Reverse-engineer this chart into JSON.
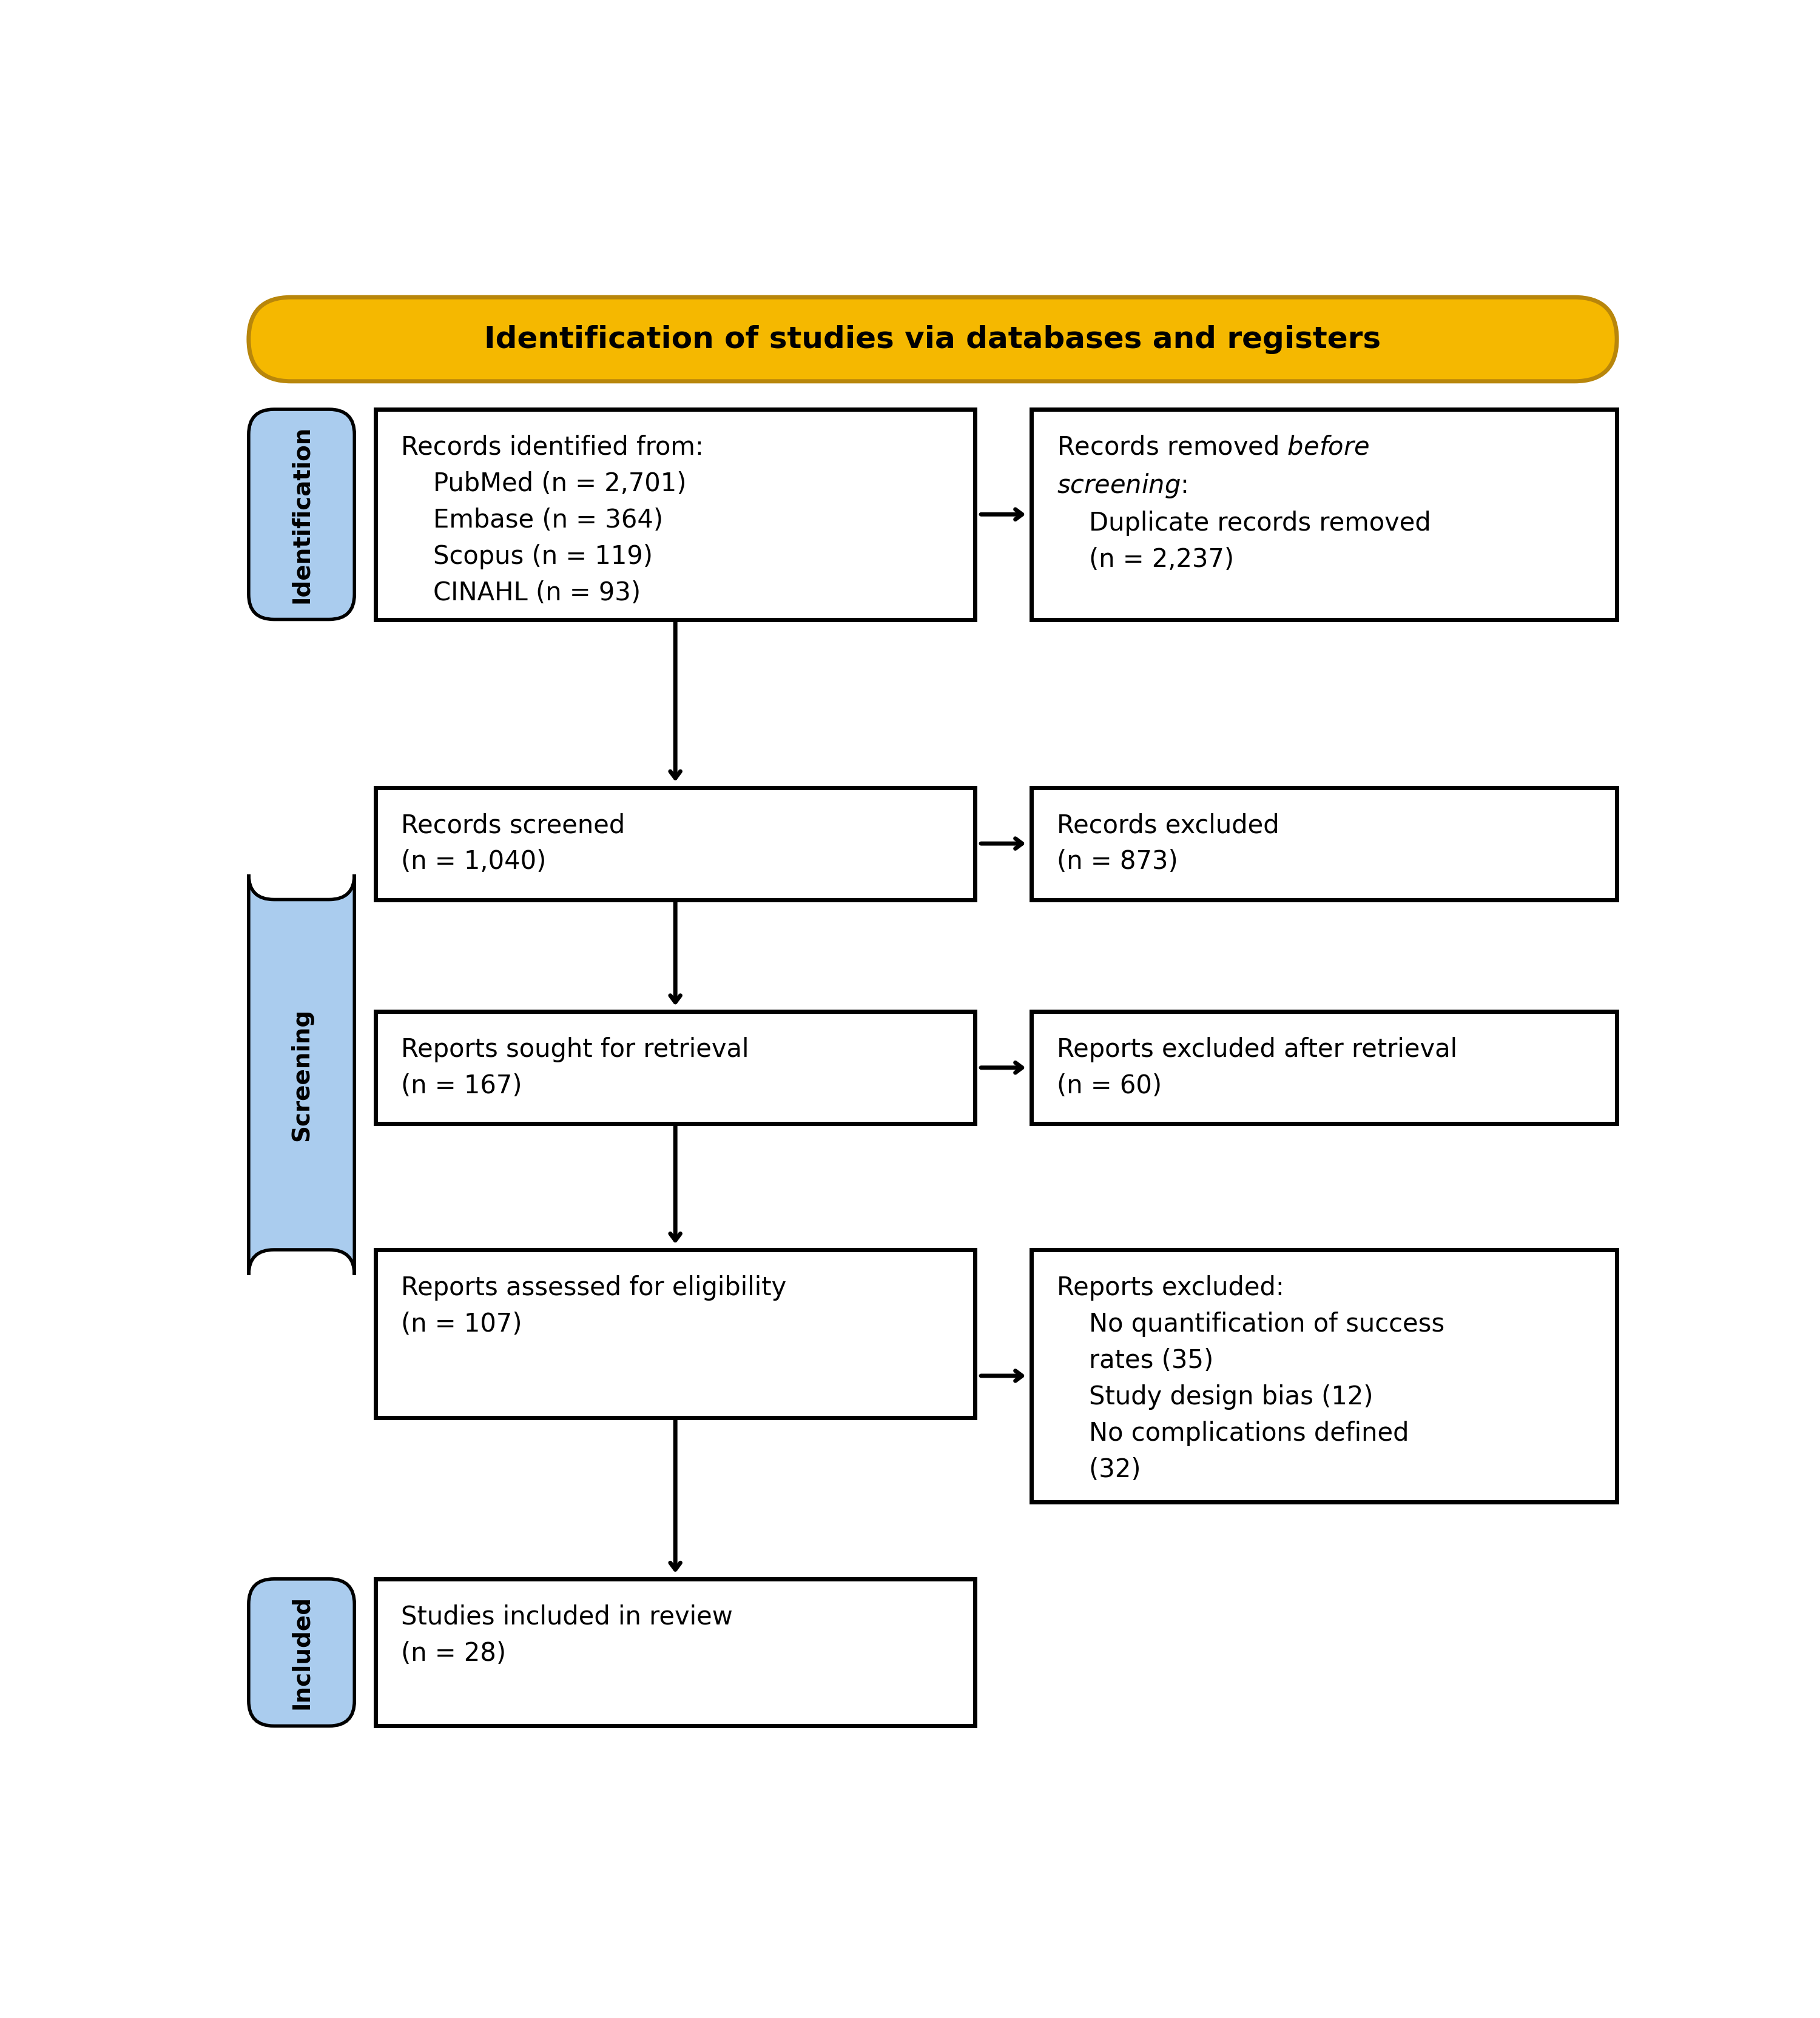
{
  "title": "Identification of studies via databases and registers",
  "title_bg": "#F5B800",
  "title_border": "#B8860B",
  "title_text_color": "#000000",
  "side_label_bg": "#AACCEE",
  "side_label_border": "#000000",
  "side_labels": [
    "Identification",
    "Screening",
    "Included"
  ],
  "box_bg": "#FFFFFF",
  "box_border": "#000000",
  "arrow_color": "#000000",
  "left_texts": [
    "Records identified from:\n    PubMed (n = 2,701)\n    Embase (n = 364)\n    Scopus (n = 119)\n    CINAHL (n = 93)",
    "Records screened\n(n = 1,040)",
    "Reports sought for retrieval\n(n = 167)",
    "Reports assessed for eligibility\n(n = 107)",
    "Studies included in review\n(n = 28)"
  ],
  "right_texts": [
    "Records removed before\nscreening:\n    Duplicate records removed\n    (n = 2,237)",
    "Records excluded\n(n = 873)",
    "Reports excluded after retrieval\n(n = 60)",
    "Reports excluded:\n    No quantification of success\n    rates (35)\n    Study design bias (12)\n    No complications defined\n    (32)"
  ],
  "right_italic_parts": [
    [
      "before",
      "screening"
    ],
    [],
    [],
    []
  ]
}
